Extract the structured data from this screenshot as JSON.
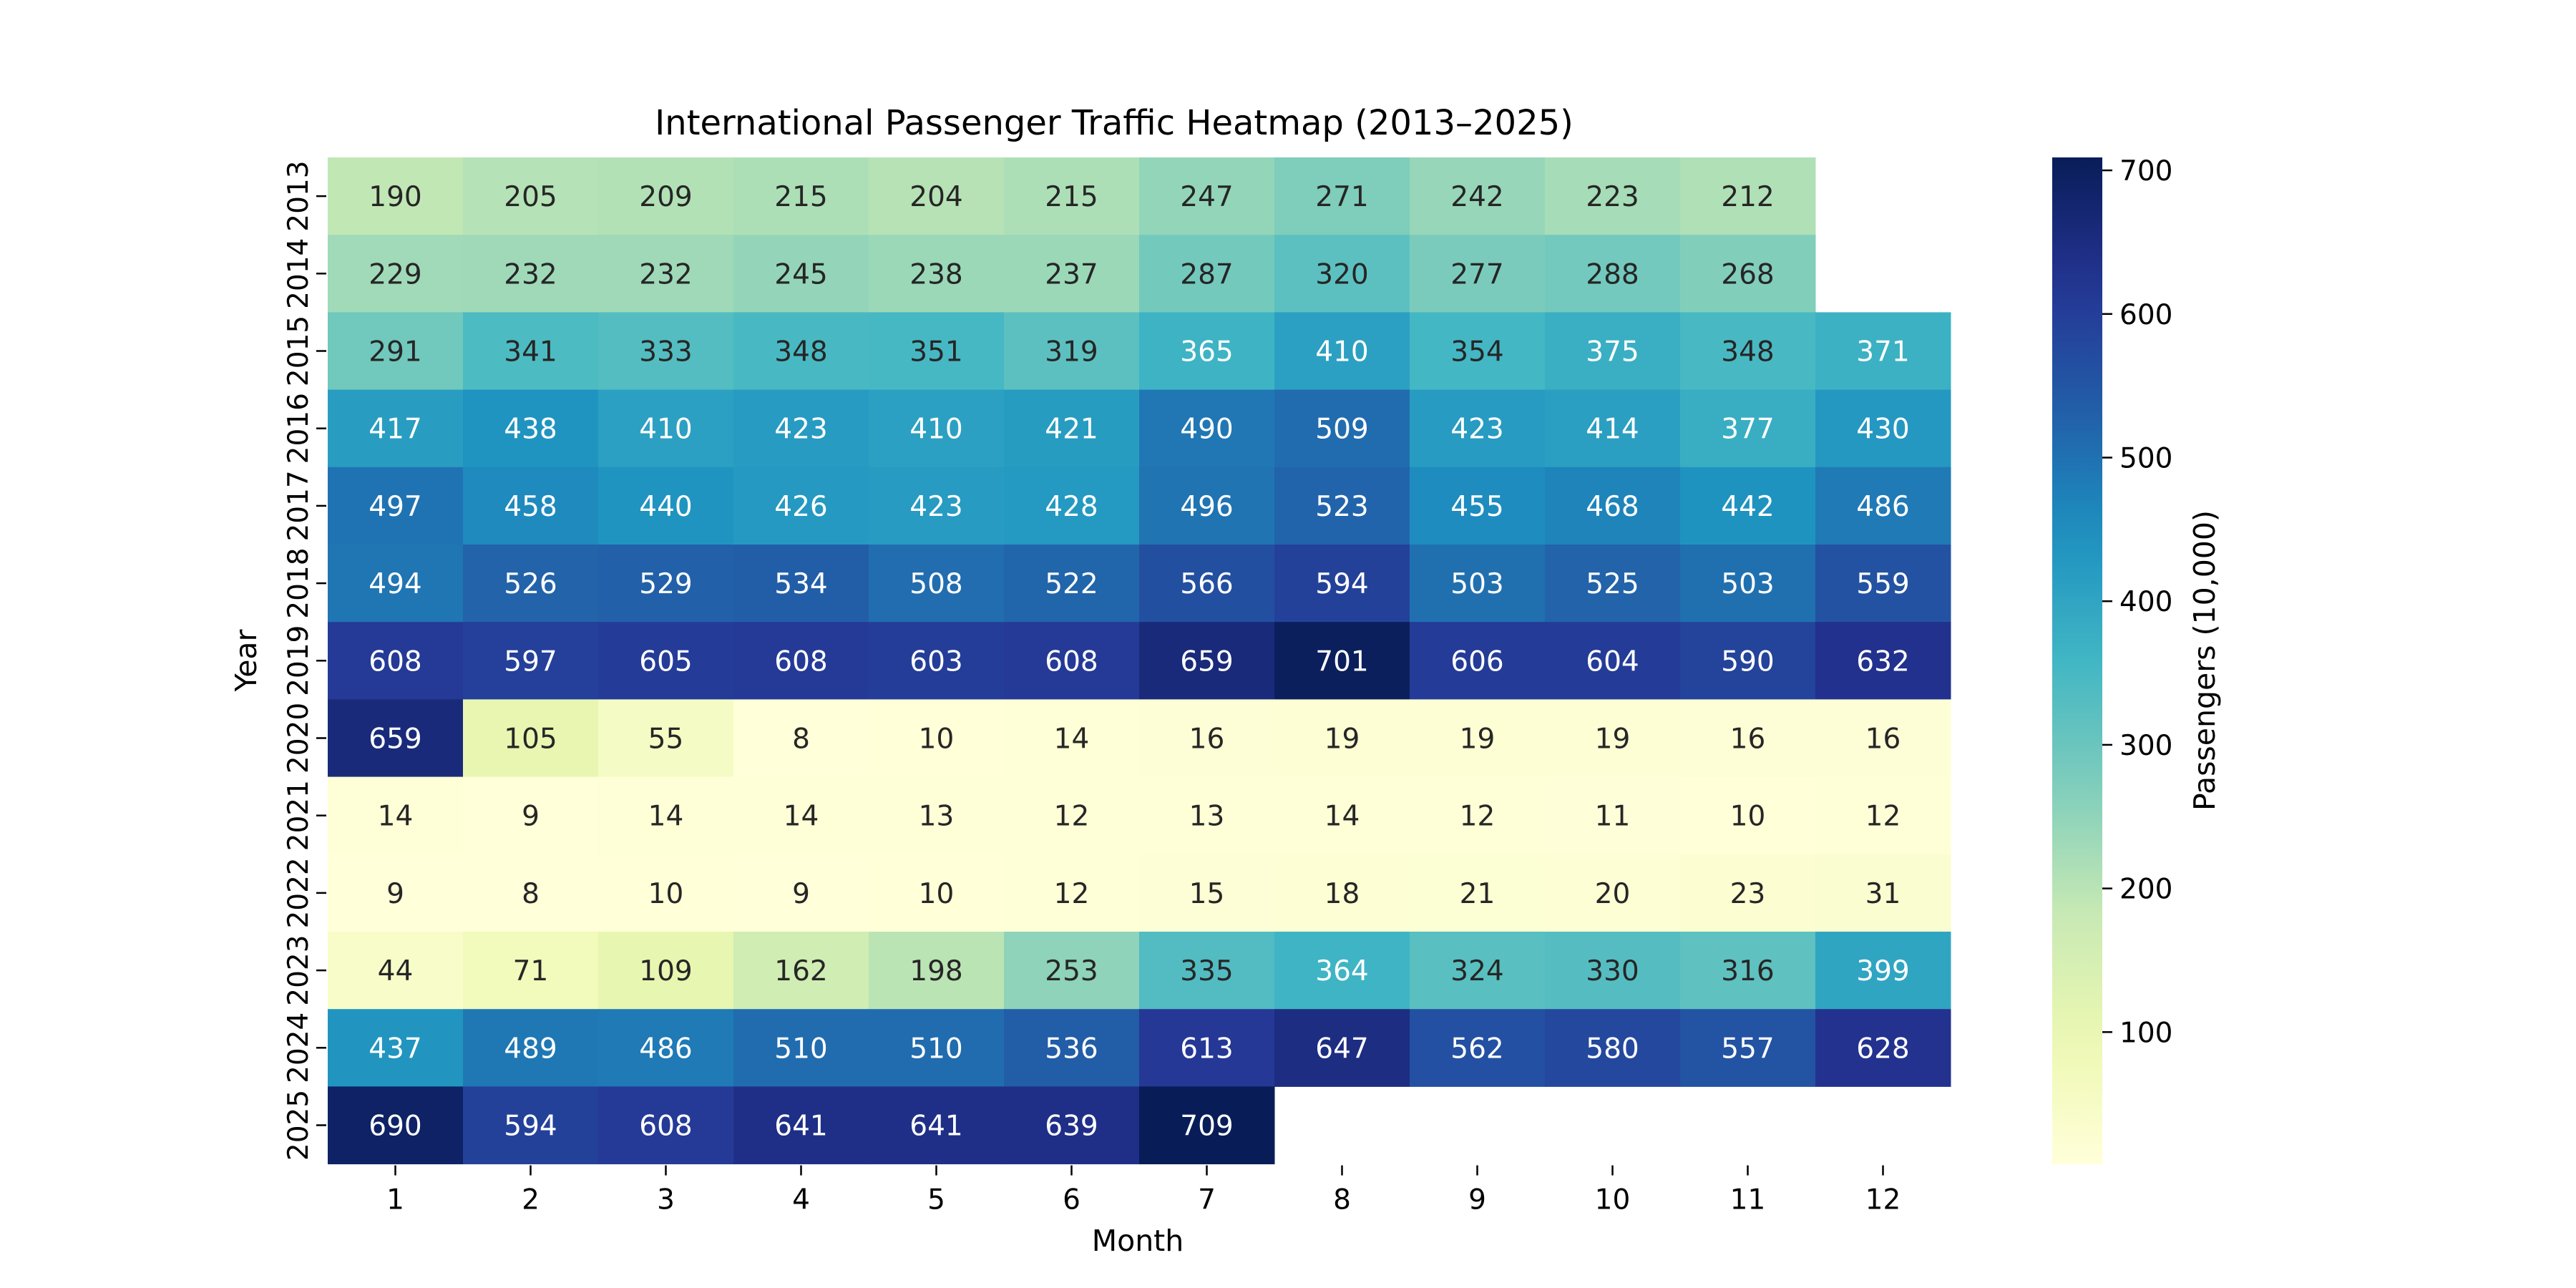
{
  "chart_data": {
    "type": "heatmap",
    "title": "International Passenger Traffic Heatmap (2013–2025)",
    "xlabel": "Month",
    "ylabel": "Year",
    "x": [
      "1",
      "2",
      "3",
      "4",
      "5",
      "6",
      "7",
      "8",
      "9",
      "10",
      "11",
      "12"
    ],
    "y": [
      "2013",
      "2014",
      "2015",
      "2016",
      "2017",
      "2018",
      "2019",
      "2020",
      "2021",
      "2022",
      "2023",
      "2024",
      "2025"
    ],
    "values": [
      [
        190,
        205,
        209,
        215,
        204,
        215,
        247,
        271,
        242,
        223,
        212,
        null
      ],
      [
        229,
        232,
        232,
        245,
        238,
        237,
        287,
        320,
        277,
        288,
        268,
        null
      ],
      [
        291,
        341,
        333,
        348,
        351,
        319,
        365,
        410,
        354,
        375,
        348,
        371
      ],
      [
        417,
        438,
        410,
        423,
        410,
        421,
        490,
        509,
        423,
        414,
        377,
        430
      ],
      [
        497,
        458,
        440,
        426,
        423,
        428,
        496,
        523,
        455,
        468,
        442,
        486
      ],
      [
        494,
        526,
        529,
        534,
        508,
        522,
        566,
        594,
        503,
        525,
        503,
        559
      ],
      [
        608,
        597,
        605,
        608,
        603,
        608,
        659,
        701,
        606,
        604,
        590,
        632
      ],
      [
        659,
        105,
        55,
        8,
        10,
        14,
        16,
        19,
        19,
        19,
        16,
        16
      ],
      [
        14,
        9,
        14,
        14,
        13,
        12,
        13,
        14,
        12,
        11,
        10,
        12
      ],
      [
        9,
        8,
        10,
        9,
        10,
        12,
        15,
        18,
        21,
        20,
        23,
        31
      ],
      [
        44,
        71,
        109,
        162,
        198,
        253,
        335,
        364,
        324,
        330,
        316,
        399
      ],
      [
        437,
        489,
        486,
        510,
        510,
        536,
        613,
        647,
        562,
        580,
        557,
        628
      ],
      [
        690,
        594,
        608,
        641,
        641,
        639,
        709,
        null,
        null,
        null,
        null,
        null
      ]
    ],
    "colormap": "YlGnBu",
    "vmin": 8,
    "vmax": 709,
    "colorbar": {
      "label": "Passengers (10,000)",
      "ticks": [
        100,
        200,
        300,
        400,
        500,
        600,
        700
      ]
    },
    "legend_placement": "right"
  }
}
